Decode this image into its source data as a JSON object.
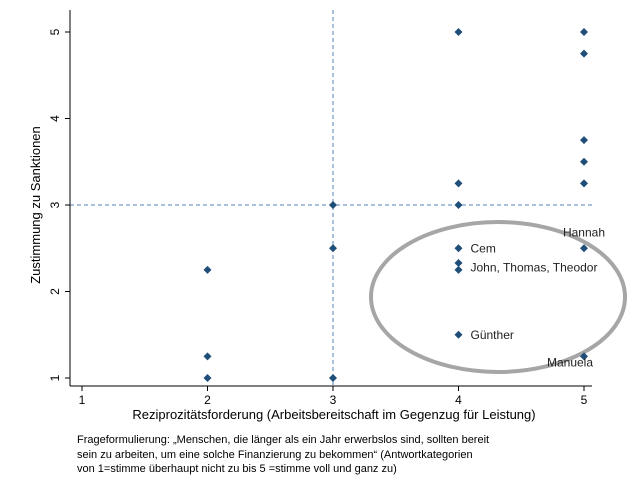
{
  "chart_data": {
    "type": "scatter",
    "xlabel": "Reziprozitätsforderung (Arbeitsbereitschaft im Gegenzug für Leistung)",
    "ylabel": "Zustimmung zu Sanktionen",
    "xlim": [
      1,
      5
    ],
    "ylim": [
      1,
      5
    ],
    "x_ticks": [
      "1",
      "2",
      "3",
      "4",
      "5"
    ],
    "y_ticks": [
      "1",
      "2",
      "3",
      "4",
      "5"
    ],
    "reference_lines": {
      "x": 3,
      "y": 3
    },
    "marker_color": "#1f4e79",
    "reference_line_color": "#4f81bd",
    "highlight_ellipse_color": "#a6a6a6",
    "points": [
      {
        "x": 2,
        "y": 2.25
      },
      {
        "x": 2,
        "y": 1.25
      },
      {
        "x": 2,
        "y": 1.0
      },
      {
        "x": 3,
        "y": 3.0
      },
      {
        "x": 3,
        "y": 2.5
      },
      {
        "x": 3,
        "y": 1.0
      },
      {
        "x": 4,
        "y": 5.0
      },
      {
        "x": 4,
        "y": 3.25
      },
      {
        "x": 4,
        "y": 3.0
      },
      {
        "x": 4,
        "y": 2.5
      },
      {
        "x": 4,
        "y": 2.33
      },
      {
        "x": 4,
        "y": 2.25
      },
      {
        "x": 4,
        "y": 1.5
      },
      {
        "x": 5,
        "y": 5.0
      },
      {
        "x": 5,
        "y": 4.75
      },
      {
        "x": 5,
        "y": 3.75
      },
      {
        "x": 5,
        "y": 3.5
      },
      {
        "x": 5,
        "y": 3.25
      },
      {
        "x": 5,
        "y": 2.5
      },
      {
        "x": 5,
        "y": 1.25
      }
    ],
    "annotations": [
      {
        "text": "Cem",
        "x": 4,
        "y": 2.5
      },
      {
        "text": "John, Thomas, Theodor",
        "x": 4,
        "y": 2.28
      },
      {
        "text": "Günther",
        "x": 4,
        "y": 1.5
      },
      {
        "text": "Hannah",
        "x": 5,
        "y": 2.5
      },
      {
        "text": "Manuela",
        "x": 5,
        "y": 1.25
      }
    ]
  },
  "caption": {
    "line1": "Frageformulierung: „Menschen, die länger als ein Jahr erwerbslos sind, sollten bereit",
    "line2": "sein zu arbeiten, um eine solche Finanzierung zu bekommen“ (Antwortkategorien",
    "line3": "von 1=stimme überhaupt nicht zu bis 5 =stimme voll und ganz zu)"
  }
}
